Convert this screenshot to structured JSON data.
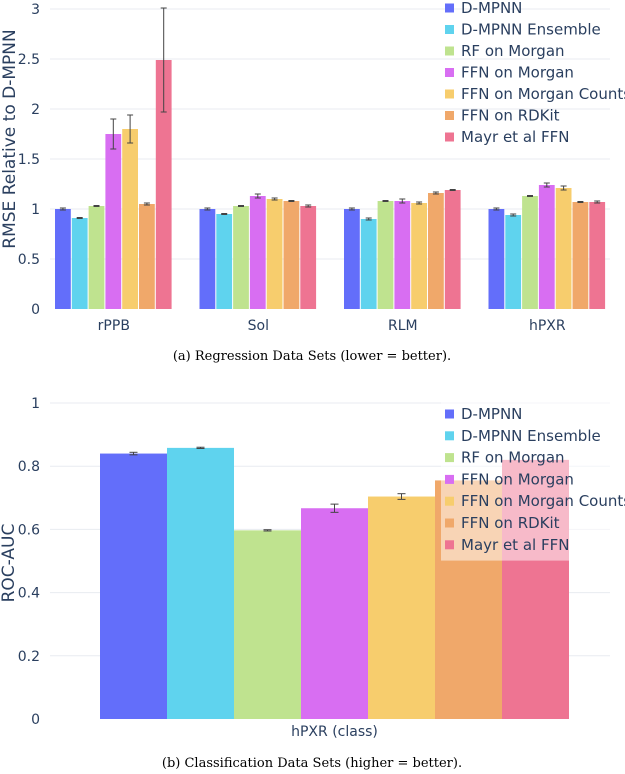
{
  "chart_data": [
    {
      "type": "bar",
      "title": "",
      "caption": "(a) Regression Data Sets (lower = better).",
      "xlabel": "",
      "ylabel": "RMSE Relative to D-MPNN",
      "categories": [
        "rPPB",
        "Sol",
        "RLM",
        "hPXR"
      ],
      "ylim": [
        0,
        3
      ],
      "yticks": [
        0,
        0.5,
        1,
        1.5,
        2,
        2.5,
        3
      ],
      "ytick_labels": [
        "0",
        "0.5",
        "1",
        "1.5",
        "2",
        "2.5",
        "3"
      ],
      "grid": true,
      "legend_position": "top-right",
      "series": [
        {
          "name": "D-MPNN",
          "color": "#636efa",
          "values": [
            1.0,
            1.0,
            1.0,
            1.0
          ],
          "errors": [
            0.01,
            0.01,
            0.01,
            0.01
          ]
        },
        {
          "name": "D-MPNN Ensemble",
          "color": "#5fd3ee",
          "values": [
            0.91,
            0.95,
            0.9,
            0.94
          ],
          "errors": [
            0.005,
            0.005,
            0.01,
            0.01
          ]
        },
        {
          "name": "RF on Morgan",
          "color": "#bfe38f",
          "values": [
            1.03,
            1.03,
            1.08,
            1.13
          ],
          "errors": [
            0.005,
            0.005,
            0.005,
            0.005
          ]
        },
        {
          "name": "FFN on Morgan",
          "color": "#d86ef2",
          "values": [
            1.75,
            1.13,
            1.08,
            1.24
          ],
          "errors": [
            0.15,
            0.02,
            0.02,
            0.02
          ]
        },
        {
          "name": "FFN on Morgan Counts",
          "color": "#f7cd6d",
          "values": [
            1.8,
            1.1,
            1.06,
            1.21
          ],
          "errors": [
            0.14,
            0.01,
            0.01,
            0.02
          ]
        },
        {
          "name": "FFN on RDKit",
          "color": "#f0a86a",
          "values": [
            1.05,
            1.08,
            1.16,
            1.07
          ],
          "errors": [
            0.01,
            0.005,
            0.01,
            0.005
          ]
        },
        {
          "name": "Mayr et al FFN",
          "color": "#ee7492",
          "values": [
            2.49,
            1.03,
            1.19,
            1.07
          ],
          "errors": [
            0.52,
            0.01,
            0.005,
            0.01
          ]
        }
      ]
    },
    {
      "type": "bar",
      "title": "",
      "caption": "(b) Classification Data Sets (higher = better).",
      "xlabel": "",
      "ylabel": "ROC-AUC",
      "categories": [
        "hPXR (class)"
      ],
      "ylim": [
        0,
        1
      ],
      "yticks": [
        0,
        0.2,
        0.4,
        0.6,
        0.8,
        1
      ],
      "ytick_labels": [
        "0",
        "0.2",
        "0.4",
        "0.6",
        "0.8",
        "1"
      ],
      "grid": true,
      "legend_position": "top-right",
      "series": [
        {
          "name": "D-MPNN",
          "color": "#636efa",
          "values": [
            0.84
          ],
          "errors": [
            0.004
          ]
        },
        {
          "name": "D-MPNN Ensemble",
          "color": "#5fd3ee",
          "values": [
            0.858
          ],
          "errors": [
            0.002
          ]
        },
        {
          "name": "RF on Morgan",
          "color": "#bfe38f",
          "values": [
            0.597
          ],
          "errors": [
            0.002
          ]
        },
        {
          "name": "FFN on Morgan",
          "color": "#d86ef2",
          "values": [
            0.667
          ],
          "errors": [
            0.013
          ]
        },
        {
          "name": "FFN on Morgan Counts",
          "color": "#f7cd6d",
          "values": [
            0.704
          ],
          "errors": [
            0.009
          ]
        },
        {
          "name": "FFN on RDKit",
          "color": "#f0a86a",
          "values": [
            0.755
          ],
          "errors": [
            0
          ]
        },
        {
          "name": "Mayr et al FFN",
          "color": "#ee7492",
          "values": [
            0.82
          ],
          "errors": [
            0
          ]
        }
      ]
    }
  ]
}
